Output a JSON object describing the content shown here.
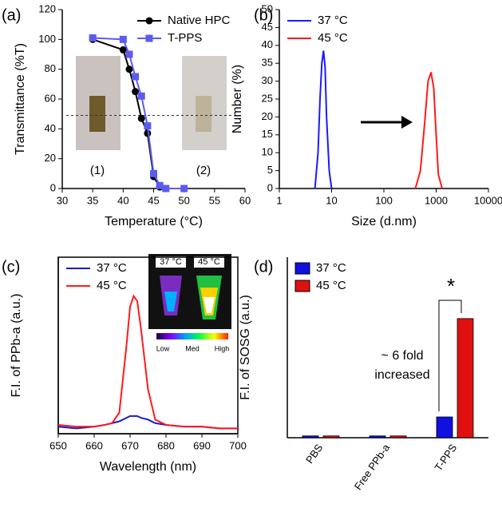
{
  "chart_data": [
    {
      "type": "line",
      "label": "(a)",
      "x_label": "Temperature (°C)",
      "y_label": "Transmittance (%T)",
      "xlim": [
        30,
        60
      ],
      "xticks": [
        30,
        35,
        40,
        45,
        50,
        55,
        60
      ],
      "ylim": [
        0,
        120
      ],
      "yticks": [
        0,
        20,
        40,
        60,
        80,
        100,
        120
      ],
      "reference_line": 49,
      "legend": "upper right",
      "annotations": [
        "(1)",
        "(2)"
      ],
      "series": [
        {
          "name": "Native HPC",
          "color": "#000000",
          "marker": "circle",
          "x": [
            35,
            40,
            41,
            42,
            43,
            44,
            45,
            46,
            47
          ],
          "values": [
            100,
            93,
            80,
            65,
            47,
            37,
            8,
            1,
            0
          ]
        },
        {
          "name": "T-PPS",
          "color": "#5b5bf0",
          "marker": "square",
          "x": [
            35,
            40,
            41,
            42,
            43,
            44,
            45,
            46,
            47,
            50
          ],
          "values": [
            101,
            100,
            90,
            75,
            62,
            42,
            10,
            2,
            0,
            0
          ]
        }
      ]
    },
    {
      "type": "line",
      "label": "(b)",
      "x_label": "Size (d.nm)",
      "y_label": "Number (%)",
      "xscale": "log",
      "xlim": [
        1,
        10000
      ],
      "xticks": [
        1,
        10,
        100,
        1000,
        10000
      ],
      "ylim": [
        0,
        50
      ],
      "yticks": [
        0,
        5,
        10,
        15,
        20,
        25,
        30,
        35,
        40,
        45,
        50
      ],
      "legend": "upper left",
      "series": [
        {
          "name": "37 °C",
          "color": "#1a1aff",
          "x": [
            4.8,
            5.5,
            6,
            6.5,
            7,
            7.5,
            8,
            9,
            10
          ],
          "values": [
            0,
            10,
            25,
            35,
            38.5,
            34,
            20,
            5,
            0
          ]
        },
        {
          "name": "45 °C",
          "color": "#ff1a1a",
          "x": [
            400,
            500,
            600,
            700,
            800,
            900,
            1000,
            1100,
            1300
          ],
          "values": [
            0,
            5,
            18,
            30,
            32.5,
            28,
            15,
            4,
            0
          ]
        }
      ]
    },
    {
      "type": "line",
      "label": "(c)",
      "x_label": "Wavelength (nm)",
      "y_label": "F.I. of PPb-a (a.u.)",
      "xlim": [
        650,
        700
      ],
      "xticks": [
        650,
        660,
        670,
        680,
        690,
        700
      ],
      "ylim": [
        0,
        100
      ],
      "box": true,
      "legend": "upper left",
      "annotations": [
        "37 °C",
        "45 °C",
        "Low",
        "Med",
        "High"
      ],
      "series": [
        {
          "name": "37 °C",
          "color": "#1a1acc",
          "x": [
            650,
            655,
            660,
            663,
            665,
            667,
            669,
            670,
            671,
            672,
            673,
            675,
            677,
            680,
            685,
            690,
            695,
            700
          ],
          "values": [
            4,
            3,
            4,
            5,
            6,
            7,
            9,
            10,
            10,
            10,
            9,
            8,
            6,
            5,
            4,
            4,
            3,
            3
          ]
        },
        {
          "name": "45 °C",
          "color": "#ff1a1a",
          "x": [
            650,
            655,
            660,
            663,
            665,
            667,
            669,
            670,
            671,
            672,
            673,
            675,
            677,
            680,
            685,
            690,
            695,
            700
          ],
          "values": [
            5,
            4,
            4,
            5,
            6,
            12,
            50,
            72,
            78,
            75,
            60,
            25,
            8,
            5,
            4,
            4,
            3,
            3
          ]
        }
      ]
    },
    {
      "type": "bar",
      "label": "(d)",
      "y_label": "F.I. of SOSG (a.u.)",
      "ylim": [
        0,
        100
      ],
      "legend": "upper left",
      "categories": [
        "PBS",
        "Free PPb-a",
        "T-PPS"
      ],
      "annotations": [
        "~ 6 fold",
        "increased",
        "*"
      ],
      "series": [
        {
          "name": "37 °C",
          "color": "#1010e0",
          "values": [
            1,
            1,
            11.5
          ]
        },
        {
          "name": "45 °C",
          "color": "#e01010",
          "values": [
            1,
            1,
            66
          ]
        }
      ]
    }
  ]
}
